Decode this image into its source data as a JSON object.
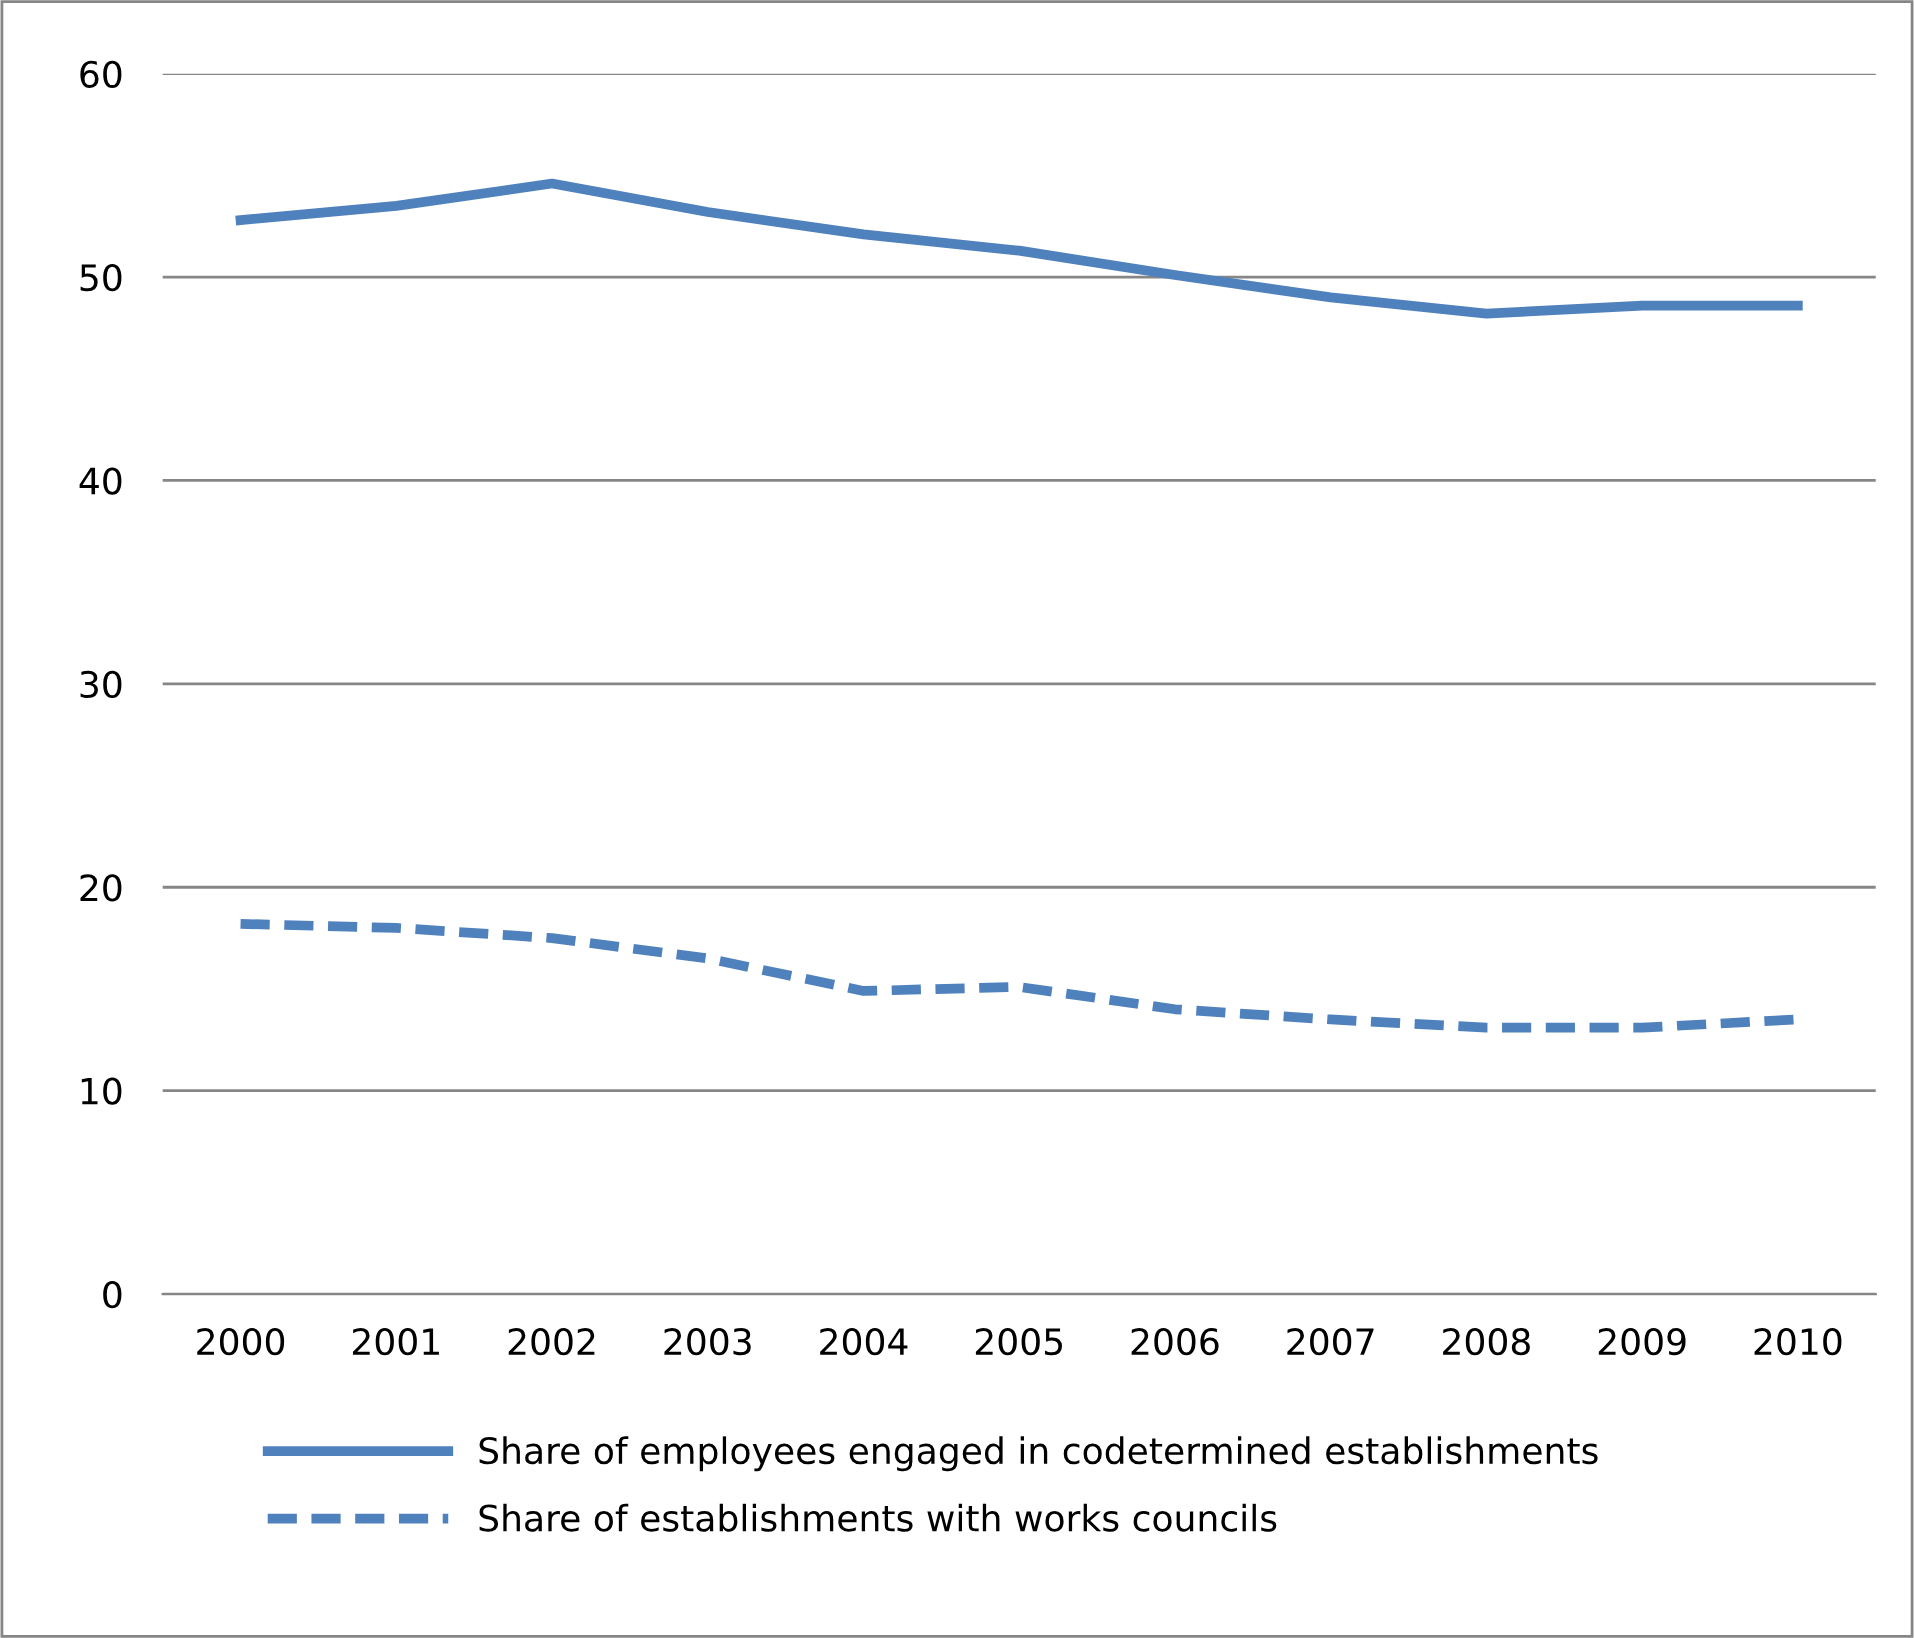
{
  "chart_data": {
    "type": "line",
    "categories": [
      "2000",
      "2001",
      "2002",
      "2003",
      "2004",
      "2005",
      "2006",
      "2007",
      "2008",
      "2009",
      "2010"
    ],
    "series": [
      {
        "name": "Share of employees engaged in codetermined establishments",
        "color": "#4f81bd",
        "line_style": "solid",
        "values": [
          52.8,
          53.5,
          54.6,
          53.2,
          52.1,
          51.3,
          50.1,
          49.0,
          48.2,
          48.6,
          48.6
        ]
      },
      {
        "name": "Share of establishments with works councils",
        "color": "#4f81bd",
        "line_style": "dashed",
        "values": [
          18.2,
          18.0,
          17.5,
          16.5,
          14.9,
          15.1,
          14.0,
          13.5,
          13.1,
          13.1,
          13.5
        ]
      }
    ],
    "ylim": [
      0,
      60
    ],
    "yticks": [
      0,
      10,
      20,
      30,
      40,
      50,
      60
    ],
    "grid": "y",
    "legend": "bottom",
    "marker": "none"
  }
}
